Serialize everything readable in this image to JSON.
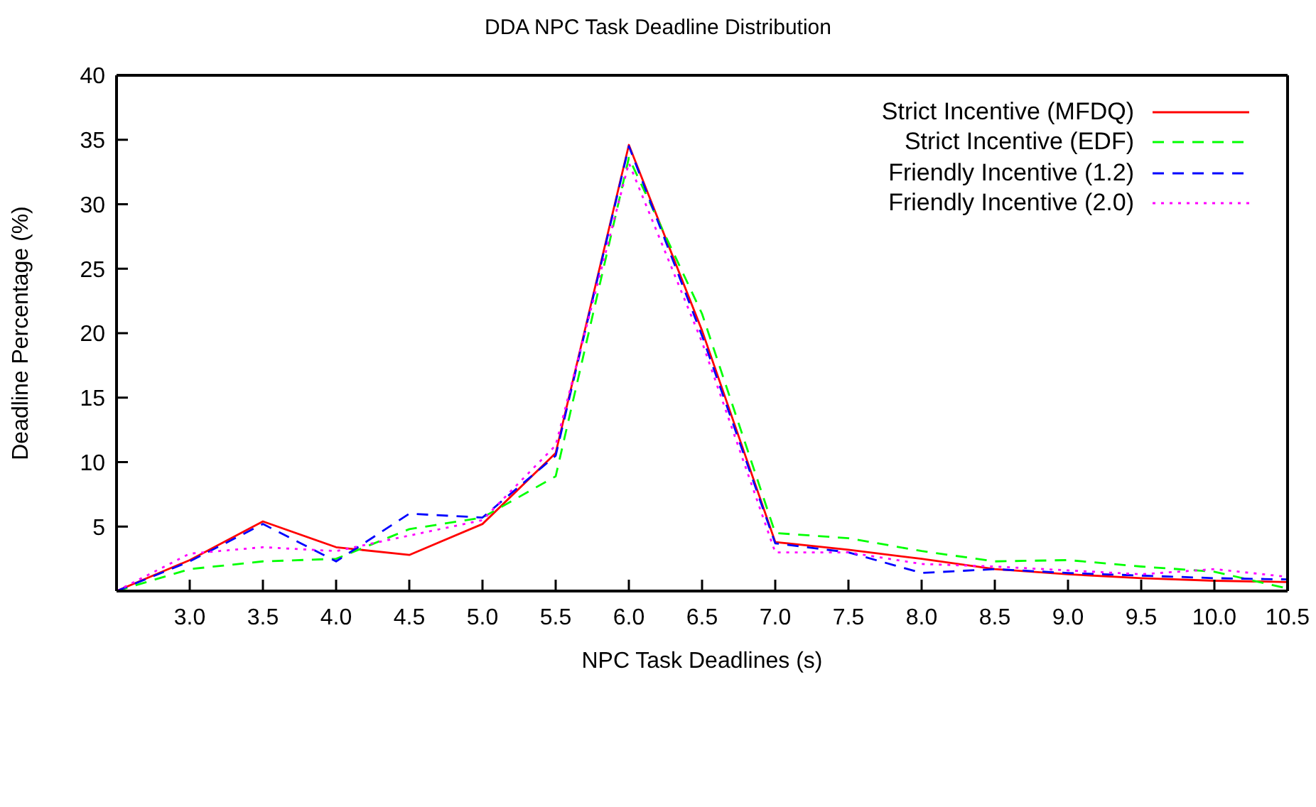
{
  "chart_data": {
    "type": "line",
    "title": "DDA NPC Task Deadline Distribution",
    "xlabel": "NPC Task Deadlines (s)",
    "ylabel": "Deadline Percentage (%)",
    "x": [
      2.5,
      3,
      3.5,
      4,
      4.5,
      5,
      5.5,
      6,
      6.5,
      7,
      7.5,
      8,
      8.5,
      9,
      9.5,
      10,
      10.5
    ],
    "series": [
      {
        "name": "Strict Incentive (MFDQ)",
        "color": "#ff0000",
        "line_style": "solid",
        "values": [
          0,
          2.4,
          5.4,
          3.4,
          2.8,
          5.2,
          10.7,
          34.6,
          20.2,
          3.8,
          3.2,
          2.5,
          1.7,
          1.3,
          1.0,
          0.8,
          0.7
        ]
      },
      {
        "name": "Strict Incentive (EDF)",
        "color": "#00ff00",
        "line_style": "dashed",
        "values": [
          0,
          1.7,
          2.3,
          2.5,
          4.8,
          5.7,
          8.9,
          33.6,
          21.5,
          4.5,
          4.1,
          3.1,
          2.3,
          2.4,
          1.9,
          1.5,
          0.2
        ]
      },
      {
        "name": "Friendly Incentive (1.2)",
        "color": "#0000ff",
        "line_style": "dashed",
        "values": [
          0,
          2.3,
          5.2,
          2.3,
          6.0,
          5.7,
          10.5,
          34.5,
          19.8,
          3.7,
          3.0,
          1.4,
          1.7,
          1.4,
          1.2,
          1.0,
          0.9
        ]
      },
      {
        "name": "Friendly Incentive (2.0)",
        "color": "#ff00ff",
        "line_style": "dotted",
        "values": [
          0,
          2.9,
          3.4,
          3.1,
          4.3,
          5.5,
          11.3,
          33.2,
          19.3,
          3.0,
          3.0,
          2.1,
          1.9,
          1.6,
          1.3,
          1.7,
          1.1
        ]
      }
    ],
    "xlim": [
      2.5,
      10.5
    ],
    "xticks": [
      {
        "value": 3,
        "label": "3.0"
      },
      {
        "value": 3.5,
        "label": "3.5"
      },
      {
        "value": 4,
        "label": "4.0"
      },
      {
        "value": 4.5,
        "label": "4.5"
      },
      {
        "value": 5,
        "label": "5.0"
      },
      {
        "value": 5.5,
        "label": "5.5"
      },
      {
        "value": 6,
        "label": "6.0"
      },
      {
        "value": 6.5,
        "label": "6.5"
      },
      {
        "value": 7,
        "label": "7.0"
      },
      {
        "value": 7.5,
        "label": "7.5"
      },
      {
        "value": 8,
        "label": "8.0"
      },
      {
        "value": 8.5,
        "label": "8.5"
      },
      {
        "value": 9,
        "label": "9.0"
      },
      {
        "value": 9.5,
        "label": "9.5"
      },
      {
        "value": 10,
        "label": "10.0"
      },
      {
        "value": 10.5,
        "label": "10.5"
      }
    ],
    "ylim": [
      0,
      40
    ],
    "yticks": [
      5,
      10,
      15,
      20,
      25,
      30,
      35,
      40
    ],
    "grid": false,
    "legend": "top right"
  }
}
